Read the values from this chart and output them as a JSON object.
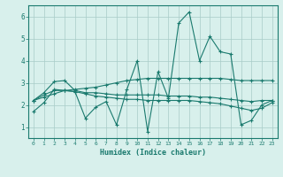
{
  "title": "",
  "xlabel": "Humidex (Indice chaleur)",
  "ylabel": "",
  "x": [
    0,
    1,
    2,
    3,
    4,
    5,
    6,
    7,
    8,
    9,
    10,
    11,
    12,
    13,
    14,
    15,
    16,
    17,
    18,
    19,
    20,
    21,
    22,
    23
  ],
  "line1": [
    1.7,
    2.1,
    2.7,
    2.65,
    2.6,
    1.4,
    1.9,
    2.15,
    1.1,
    2.7,
    4.0,
    0.8,
    3.5,
    2.3,
    5.7,
    6.2,
    4.0,
    5.1,
    4.4,
    4.3,
    1.1,
    1.3,
    2.0,
    2.2
  ],
  "line2": [
    2.2,
    2.55,
    3.05,
    3.1,
    2.65,
    2.55,
    2.55,
    2.5,
    2.45,
    2.45,
    2.45,
    2.45,
    2.45,
    2.4,
    2.4,
    2.4,
    2.35,
    2.35,
    2.3,
    2.25,
    2.2,
    2.15,
    2.2,
    2.2
  ],
  "line3": [
    2.2,
    2.35,
    2.5,
    2.65,
    2.7,
    2.75,
    2.8,
    2.9,
    3.0,
    3.1,
    3.15,
    3.2,
    3.2,
    3.2,
    3.2,
    3.2,
    3.2,
    3.2,
    3.2,
    3.15,
    3.1,
    3.1,
    3.1,
    3.1
  ],
  "line4": [
    2.2,
    2.45,
    2.65,
    2.65,
    2.6,
    2.5,
    2.4,
    2.35,
    2.3,
    2.25,
    2.25,
    2.2,
    2.2,
    2.2,
    2.2,
    2.2,
    2.15,
    2.1,
    2.05,
    1.95,
    1.85,
    1.75,
    1.85,
    2.1
  ],
  "line_color": "#1a7a6e",
  "bg_color": "#d8f0ec",
  "grid_color": "#a8ccc8",
  "ylim": [
    0.5,
    6.5
  ],
  "xlim": [
    -0.5,
    23.5
  ],
  "yticks": [
    1,
    2,
    3,
    4,
    5,
    6
  ],
  "xticks": [
    0,
    1,
    2,
    3,
    4,
    5,
    6,
    7,
    8,
    9,
    10,
    11,
    12,
    13,
    14,
    15,
    16,
    17,
    18,
    19,
    20,
    21,
    22,
    23
  ]
}
